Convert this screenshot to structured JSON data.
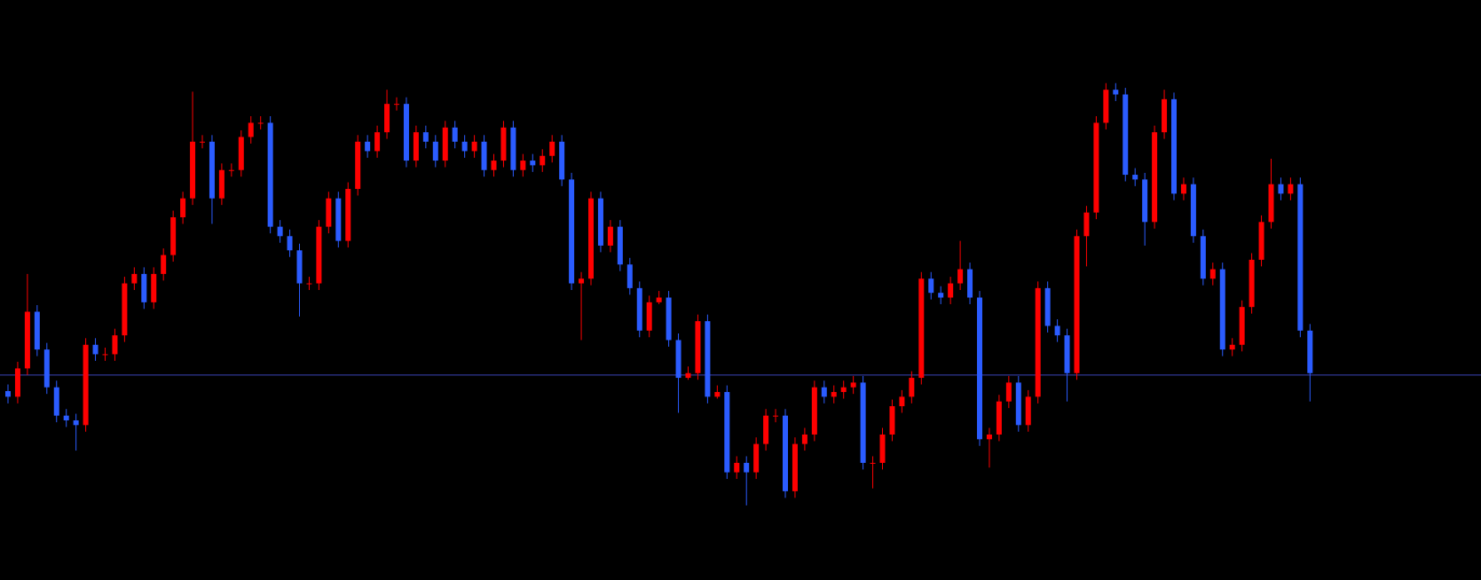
{
  "chart_data": {
    "type": "candlestick",
    "background": "#000000",
    "up_color": "#ff0000",
    "down_color": "#2b5cff",
    "hline": 217,
    "hline_color": "#3a44b8",
    "ylim": [
      0,
      614
    ],
    "ohlc": [
      [
        200,
        207,
        187,
        194
      ],
      [
        194,
        231,
        187,
        224
      ],
      [
        224,
        324,
        217,
        284
      ],
      [
        284,
        291,
        237,
        244
      ],
      [
        244,
        251,
        197,
        204
      ],
      [
        204,
        211,
        167,
        174
      ],
      [
        174,
        181,
        162,
        169
      ],
      [
        169,
        176,
        137,
        164
      ],
      [
        164,
        256,
        157,
        249
      ],
      [
        249,
        256,
        232,
        239
      ],
      [
        239,
        246,
        232,
        239
      ],
      [
        239,
        266,
        232,
        259
      ],
      [
        259,
        321,
        252,
        314
      ],
      [
        314,
        331,
        307,
        324
      ],
      [
        324,
        331,
        287,
        294
      ],
      [
        294,
        331,
        287,
        324
      ],
      [
        324,
        351,
        317,
        344
      ],
      [
        344,
        391,
        337,
        384
      ],
      [
        384,
        411,
        377,
        404
      ],
      [
        404,
        517,
        397,
        464
      ],
      [
        464,
        471,
        457,
        464
      ],
      [
        464,
        471,
        377,
        404
      ],
      [
        404,
        441,
        397,
        434
      ],
      [
        434,
        441,
        427,
        434
      ],
      [
        434,
        476,
        427,
        469
      ],
      [
        469,
        491,
        462,
        484
      ],
      [
        484,
        491,
        477,
        484
      ],
      [
        484,
        491,
        367,
        374
      ],
      [
        374,
        381,
        357,
        364
      ],
      [
        364,
        371,
        342,
        349
      ],
      [
        349,
        356,
        279,
        314
      ],
      [
        314,
        321,
        307,
        314
      ],
      [
        314,
        381,
        307,
        374
      ],
      [
        374,
        411,
        367,
        404
      ],
      [
        404,
        411,
        352,
        359
      ],
      [
        359,
        421,
        352,
        414
      ],
      [
        414,
        471,
        407,
        464
      ],
      [
        464,
        471,
        447,
        454
      ],
      [
        454,
        481,
        447,
        474
      ],
      [
        474,
        519,
        467,
        504
      ],
      [
        504,
        511,
        497,
        504
      ],
      [
        504,
        511,
        437,
        444
      ],
      [
        444,
        481,
        437,
        474
      ],
      [
        474,
        481,
        457,
        464
      ],
      [
        464,
        471,
        437,
        444
      ],
      [
        444,
        486,
        437,
        479
      ],
      [
        479,
        486,
        457,
        464
      ],
      [
        464,
        471,
        447,
        454
      ],
      [
        454,
        471,
        447,
        464
      ],
      [
        464,
        471,
        427,
        434
      ],
      [
        434,
        451,
        427,
        444
      ],
      [
        444,
        486,
        437,
        479
      ],
      [
        479,
        486,
        427,
        434
      ],
      [
        434,
        451,
        427,
        444
      ],
      [
        444,
        451,
        432,
        439
      ],
      [
        439,
        456,
        432,
        449
      ],
      [
        449,
        471,
        442,
        464
      ],
      [
        464,
        471,
        417,
        424
      ],
      [
        424,
        431,
        307,
        314
      ],
      [
        314,
        326,
        254,
        319
      ],
      [
        319,
        411,
        312,
        404
      ],
      [
        404,
        411,
        347,
        354
      ],
      [
        354,
        381,
        347,
        374
      ],
      [
        374,
        381,
        327,
        334
      ],
      [
        334,
        341,
        302,
        309
      ],
      [
        309,
        316,
        257,
        264
      ],
      [
        264,
        301,
        257,
        294
      ],
      [
        294,
        306,
        292,
        299
      ],
      [
        299,
        306,
        247,
        254
      ],
      [
        254,
        261,
        177,
        214
      ],
      [
        214,
        226,
        212,
        219
      ],
      [
        219,
        281,
        212,
        274
      ],
      [
        274,
        281,
        187,
        194
      ],
      [
        194,
        206,
        192,
        199
      ],
      [
        199,
        206,
        107,
        114
      ],
      [
        114,
        131,
        107,
        124
      ],
      [
        124,
        131,
        79,
        114
      ],
      [
        114,
        151,
        107,
        144
      ],
      [
        144,
        181,
        137,
        174
      ],
      [
        174,
        181,
        167,
        174
      ],
      [
        174,
        181,
        87,
        94
      ],
      [
        94,
        151,
        87,
        144
      ],
      [
        144,
        161,
        137,
        154
      ],
      [
        154,
        211,
        147,
        204
      ],
      [
        204,
        211,
        187,
        194
      ],
      [
        194,
        206,
        187,
        199
      ],
      [
        199,
        211,
        192,
        204
      ],
      [
        204,
        216,
        197,
        209
      ],
      [
        209,
        216,
        117,
        124
      ],
      [
        124,
        131,
        97,
        124
      ],
      [
        124,
        161,
        117,
        154
      ],
      [
        154,
        191,
        147,
        184
      ],
      [
        184,
        201,
        177,
        194
      ],
      [
        194,
        221,
        187,
        214
      ],
      [
        214,
        326,
        207,
        319
      ],
      [
        319,
        326,
        297,
        304
      ],
      [
        304,
        311,
        292,
        299
      ],
      [
        299,
        321,
        292,
        314
      ],
      [
        314,
        359,
        307,
        329
      ],
      [
        329,
        336,
        292,
        299
      ],
      [
        299,
        306,
        142,
        149
      ],
      [
        149,
        161,
        119,
        154
      ],
      [
        154,
        196,
        147,
        189
      ],
      [
        189,
        216,
        182,
        209
      ],
      [
        209,
        216,
        157,
        164
      ],
      [
        164,
        201,
        157,
        194
      ],
      [
        194,
        316,
        187,
        309
      ],
      [
        309,
        316,
        262,
        269
      ],
      [
        269,
        276,
        252,
        259
      ],
      [
        259,
        266,
        189,
        219
      ],
      [
        219,
        371,
        212,
        364
      ],
      [
        364,
        396,
        332,
        389
      ],
      [
        389,
        491,
        382,
        484
      ],
      [
        484,
        526,
        477,
        519
      ],
      [
        519,
        526,
        507,
        514
      ],
      [
        514,
        521,
        422,
        429
      ],
      [
        429,
        436,
        417,
        424
      ],
      [
        424,
        431,
        354,
        379
      ],
      [
        379,
        481,
        372,
        474
      ],
      [
        474,
        519,
        467,
        509
      ],
      [
        509,
        516,
        402,
        409
      ],
      [
        409,
        426,
        402,
        419
      ],
      [
        419,
        426,
        357,
        364
      ],
      [
        364,
        371,
        312,
        319
      ],
      [
        319,
        336,
        312,
        329
      ],
      [
        329,
        336,
        237,
        244
      ],
      [
        244,
        256,
        237,
        249
      ],
      [
        249,
        296,
        242,
        289
      ],
      [
        289,
        346,
        282,
        339
      ],
      [
        339,
        386,
        332,
        379
      ],
      [
        379,
        446,
        372,
        419
      ],
      [
        419,
        426,
        402,
        409
      ],
      [
        409,
        426,
        402,
        419
      ],
      [
        419,
        426,
        257,
        264
      ],
      [
        264,
        271,
        189,
        219
      ]
    ]
  }
}
